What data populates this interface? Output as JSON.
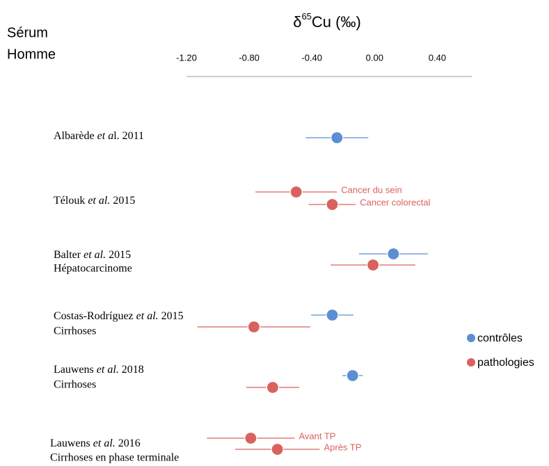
{
  "chart_data": {
    "type": "forest",
    "title_parts": [
      "δ",
      "65",
      "Cu (‰)"
    ],
    "corner_label": [
      "Sérum",
      "Homme"
    ],
    "xlim": [
      -1.2,
      0.62
    ],
    "xticks": [
      {
        "value": -1.2,
        "label": "-1.20"
      },
      {
        "value": -0.8,
        "label": "-0.80"
      },
      {
        "value": -0.4,
        "label": "-0.40"
      },
      {
        "value": 0,
        "label": "0.00"
      },
      {
        "value": 0.4,
        "label": "0.40"
      }
    ],
    "series": [
      {
        "name": "contrôles",
        "color": "#5b8fd1"
      },
      {
        "name": "pathologies",
        "color": "#d9625e"
      }
    ],
    "studies": [
      {
        "name_parts": [
          {
            "text": "Albarède ",
            "italic": false
          },
          {
            "text": "et a",
            "italic": true
          },
          {
            "text": "l. 2011",
            "italic": false
          }
        ],
        "controls": [
          {
            "value": -0.24,
            "error": 0.2
          }
        ],
        "pathologies": []
      },
      {
        "name_parts": [
          {
            "text": "Télouk ",
            "italic": false
          },
          {
            "text": "et al.",
            "italic": true
          },
          {
            "text": " 2015",
            "italic": false
          }
        ],
        "controls": [],
        "pathologies": [
          {
            "value": -0.5,
            "error": 0.26,
            "label": "Cancer du sein"
          },
          {
            "value": -0.27,
            "error": 0.15,
            "label": "Cancer colorectal"
          }
        ]
      },
      {
        "name_parts": [
          {
            "text": "Balter ",
            "italic": false
          },
          {
            "text": "et al.",
            "italic": true
          },
          {
            "text": " 2015",
            "italic": false
          }
        ],
        "subtitle": "Hépatocarcinome",
        "controls": [
          {
            "value": 0.12,
            "error": 0.22
          }
        ],
        "pathologies": [
          {
            "value": -0.01,
            "error": 0.27
          }
        ]
      },
      {
        "name_parts": [
          {
            "text": "Costas-Rodríguez ",
            "italic": false
          },
          {
            "text": "et al.",
            "italic": true
          },
          {
            "text": " 2015",
            "italic": false
          }
        ],
        "subtitle": "Cirrhoses",
        "controls": [
          {
            "value": -0.27,
            "error": 0.135
          }
        ],
        "pathologies": [
          {
            "value": -0.77,
            "error": 0.36
          }
        ]
      },
      {
        "name_parts": [
          {
            "text": "Lauwens ",
            "italic": false
          },
          {
            "text": "et al.",
            "italic": true
          },
          {
            "text": " 2018",
            "italic": false
          }
        ],
        "subtitle": "Cirrhoses",
        "controls": [
          {
            "value": -0.14,
            "error": 0.065
          }
        ],
        "pathologies": [
          {
            "value": -0.65,
            "error": 0.17
          }
        ]
      },
      {
        "name_parts": [
          {
            "text": "Lauwens ",
            "italic": false
          },
          {
            "text": "et al.",
            "italic": true
          },
          {
            "text": " 2016",
            "italic": false
          }
        ],
        "subtitle": "Cirrhoses en phase terminale",
        "controls": [],
        "pathologies": [
          {
            "value": -0.79,
            "error": 0.28,
            "label": "Avant TP"
          },
          {
            "value": -0.62,
            "error": 0.27,
            "label": "Après TP"
          }
        ]
      }
    ]
  }
}
